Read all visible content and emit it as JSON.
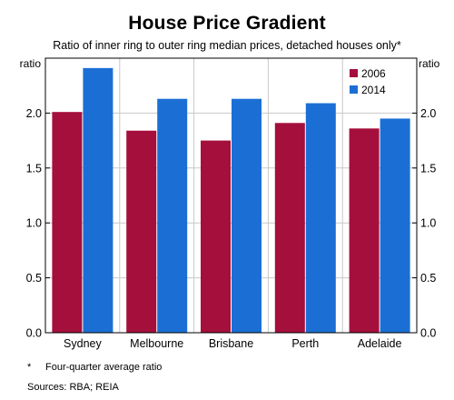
{
  "chart_data": {
    "type": "bar",
    "title": "House Price Gradient",
    "subtitle": "Ratio of inner ring to outer ring median prices, detached houses only*",
    "ylabel_left": "ratio",
    "ylabel_right": "ratio",
    "categories": [
      "Sydney",
      "Melbourne",
      "Brisbane",
      "Perth",
      "Adelaide"
    ],
    "series": [
      {
        "name": "2006",
        "color": "#a50f3c",
        "values": [
          2.01,
          1.84,
          1.75,
          1.91,
          1.86
        ]
      },
      {
        "name": "2014",
        "color": "#1b6fd4",
        "values": [
          2.41,
          2.13,
          2.13,
          2.09,
          1.95
        ]
      }
    ],
    "ylim": [
      0,
      2.5
    ],
    "yticks": [
      "0.0",
      "0.5",
      "1.0",
      "1.5",
      "2.0"
    ],
    "legend": "top-right",
    "grid": true
  },
  "footnote": {
    "marker": "*",
    "text": "Four-quarter average ratio"
  },
  "sources": "Sources: RBA; REIA"
}
